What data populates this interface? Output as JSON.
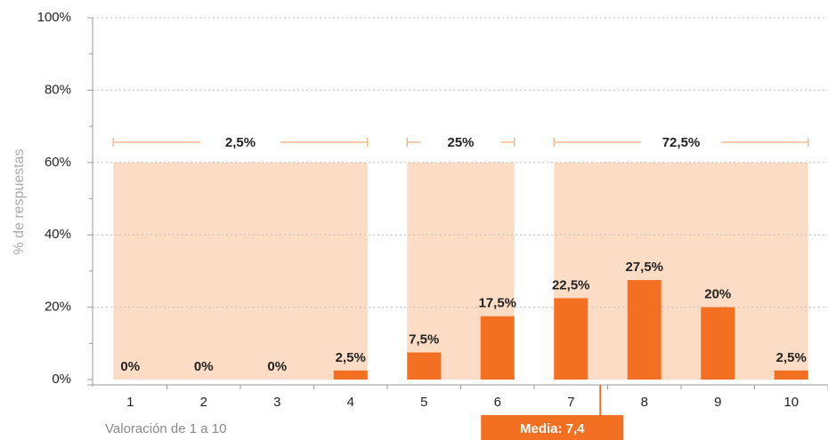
{
  "chart_data": {
    "type": "bar",
    "y_label": "% de respuestas",
    "x_label": "Valoración de 1 a 10",
    "categories": [
      "1",
      "2",
      "3",
      "4",
      "5",
      "6",
      "7",
      "8",
      "9",
      "10"
    ],
    "values": [
      0,
      0,
      0,
      2.5,
      7.5,
      17.5,
      22.5,
      27.5,
      20,
      2.5
    ],
    "value_labels": [
      "0%",
      "0%",
      "0%",
      "2,5%",
      "7,5%",
      "17,5%",
      "22,5%",
      "27,5%",
      "20%",
      "2,5%"
    ],
    "color": "#f36f21",
    "ylim": [
      0,
      100
    ],
    "yticks": [
      {
        "value": 0,
        "label": "0%"
      },
      {
        "value": 20,
        "label": "20%"
      },
      {
        "value": 40,
        "label": "40%"
      },
      {
        "value": 60,
        "label": "60%"
      },
      {
        "value": 80,
        "label": "80%"
      },
      {
        "value": 100,
        "label": "100%"
      }
    ],
    "grid": true,
    "groups": [
      {
        "start": "1",
        "end": "4",
        "value": 2.5,
        "label": "2,5%"
      },
      {
        "start": "5",
        "end": "6",
        "value": 25,
        "label": "25%"
      },
      {
        "start": "7",
        "end": "10",
        "value": 72.5,
        "label": "72,5%"
      }
    ],
    "group_band_top": 60,
    "group_color": "#fddcc5",
    "bracket_color": "#f6b98c",
    "mean": {
      "value": 7.4,
      "label": "Media: 7,4"
    }
  }
}
